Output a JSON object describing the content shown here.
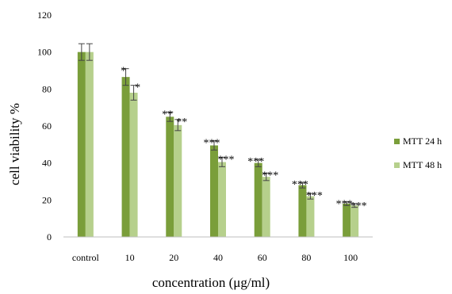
{
  "chart_data": {
    "type": "bar",
    "title": "",
    "xlabel": "concentration (μg/ml)",
    "ylabel": "cell viability %",
    "ylim": [
      0,
      120
    ],
    "yticks": [
      "0",
      "20",
      "40",
      "60",
      "80",
      "100",
      "120"
    ],
    "categories": [
      "control",
      "10",
      "20",
      "40",
      "60",
      "80",
      "100"
    ],
    "series": [
      {
        "name": "MTT 24 h",
        "color": "#7a9e3a",
        "values": [
          100,
          86.5,
          65,
          49.5,
          40,
          28,
          18
        ],
        "errors": [
          4.5,
          4.5,
          2.5,
          2.5,
          2,
          1.5,
          1
        ],
        "significance": [
          "",
          "*",
          "**",
          "***",
          "***",
          "***",
          "***"
        ]
      },
      {
        "name": "MTT 48 h",
        "color": "#b6d08c",
        "values": [
          100,
          78,
          60.5,
          40.5,
          32.5,
          22,
          17
        ],
        "errors": [
          4.5,
          4,
          3,
          2.5,
          2,
          1.5,
          1
        ],
        "significance": [
          "",
          "*",
          "**",
          "***",
          "***",
          "***",
          "***"
        ]
      }
    ],
    "legend_position": "right",
    "grid": false
  }
}
